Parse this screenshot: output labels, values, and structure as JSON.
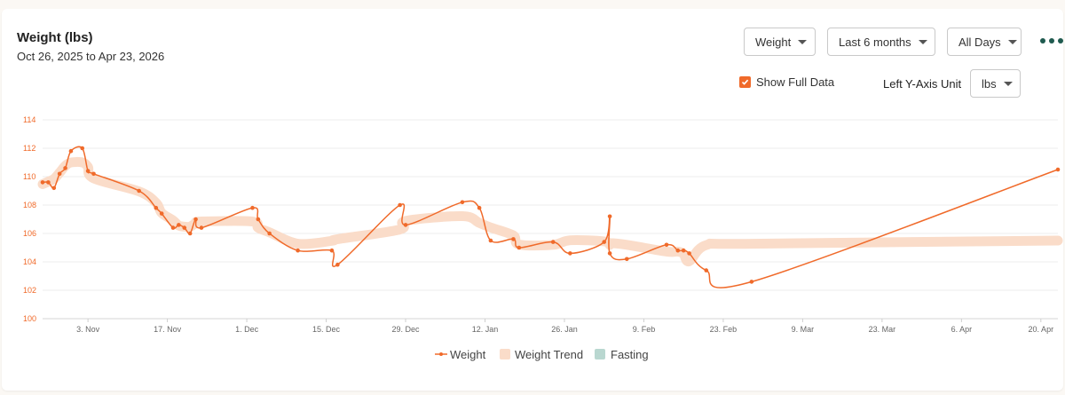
{
  "header": {
    "title": "Weight (lbs)",
    "date_range": "Oct 26, 2025 to Apr 23, 2026"
  },
  "controls": {
    "metric_select": "Weight",
    "period_select": "Last 6 months",
    "days_select": "All Days",
    "more_icon": "more-dots-icon",
    "show_full_data_label": "Show Full Data",
    "show_full_data_checked": true,
    "y_axis_unit_label": "Left Y-Axis Unit",
    "y_axis_unit_select": "lbs"
  },
  "colors": {
    "accent": "#f06a2a",
    "trend_band": "#fadcc9",
    "fasting": "#b9d7d0",
    "grid": "#ececec"
  },
  "chart_data": {
    "type": "line",
    "x_start": "2025-10-26",
    "x_end": "2026-04-23",
    "ylim": [
      100,
      114
    ],
    "y_ticks": [
      100,
      102,
      104,
      106,
      108,
      110,
      112,
      114
    ],
    "x_ticks": [
      {
        "label": "3. Nov",
        "date": "2025-11-03"
      },
      {
        "label": "17. Nov",
        "date": "2025-11-17"
      },
      {
        "label": "1. Dec",
        "date": "2025-12-01"
      },
      {
        "label": "15. Dec",
        "date": "2025-12-15"
      },
      {
        "label": "29. Dec",
        "date": "2025-12-29"
      },
      {
        "label": "12. Jan",
        "date": "2026-01-12"
      },
      {
        "label": "26. Jan",
        "date": "2026-01-26"
      },
      {
        "label": "9. Feb",
        "date": "2026-02-09"
      },
      {
        "label": "23. Feb",
        "date": "2026-02-23"
      },
      {
        "label": "9. Mar",
        "date": "2026-03-09"
      },
      {
        "label": "23. Mar",
        "date": "2026-03-23"
      },
      {
        "label": "6. Apr",
        "date": "2026-04-06"
      },
      {
        "label": "20. Apr",
        "date": "2026-04-20"
      }
    ],
    "series": [
      {
        "name": "Weight",
        "points": [
          [
            "2025-10-26",
            109.6
          ],
          [
            "2025-10-27",
            109.6
          ],
          [
            "2025-10-28",
            109.2
          ],
          [
            "2025-10-29",
            110.2
          ],
          [
            "2025-10-30",
            110.6
          ],
          [
            "2025-10-31",
            111.8
          ],
          [
            "2025-11-02",
            112.0
          ],
          [
            "2025-11-03",
            110.4
          ],
          [
            "2025-11-04",
            110.2
          ],
          [
            "2025-11-12",
            109.0
          ],
          [
            "2025-11-15",
            107.8
          ],
          [
            "2025-11-16",
            107.4
          ],
          [
            "2025-11-18",
            106.4
          ],
          [
            "2025-11-19",
            106.6
          ],
          [
            "2025-11-20",
            106.4
          ],
          [
            "2025-11-21",
            106.0
          ],
          [
            "2025-11-22",
            107.0
          ],
          [
            "2025-11-23",
            106.4
          ],
          [
            "2025-12-02",
            107.8
          ],
          [
            "2025-12-03",
            107.0
          ],
          [
            "2025-12-05",
            106.0
          ],
          [
            "2025-12-10",
            104.8
          ],
          [
            "2025-12-16",
            104.8
          ],
          [
            "2025-12-17",
            103.8
          ],
          [
            "2025-12-28",
            108.0
          ],
          [
            "2025-12-29",
            106.6
          ],
          [
            "2026-01-08",
            108.2
          ],
          [
            "2026-01-11",
            107.8
          ],
          [
            "2026-01-13",
            105.5
          ],
          [
            "2026-01-17",
            105.6
          ],
          [
            "2026-01-18",
            105.0
          ],
          [
            "2026-01-24",
            105.4
          ],
          [
            "2026-01-27",
            104.6
          ],
          [
            "2026-02-02",
            105.4
          ],
          [
            "2026-02-03",
            107.2
          ],
          [
            "2026-02-03",
            104.6
          ],
          [
            "2026-02-06",
            104.2
          ],
          [
            "2026-02-13",
            105.2
          ],
          [
            "2026-02-15",
            104.8
          ],
          [
            "2026-02-16",
            104.8
          ],
          [
            "2026-02-17",
            104.6
          ],
          [
            "2026-02-20",
            103.4
          ],
          [
            "2026-02-28",
            102.6
          ],
          [
            "2026-04-23",
            110.5
          ]
        ]
      }
    ],
    "legend": [
      "Weight",
      "Weight Trend",
      "Fasting"
    ],
    "legend_position": "bottom",
    "grid": true
  }
}
